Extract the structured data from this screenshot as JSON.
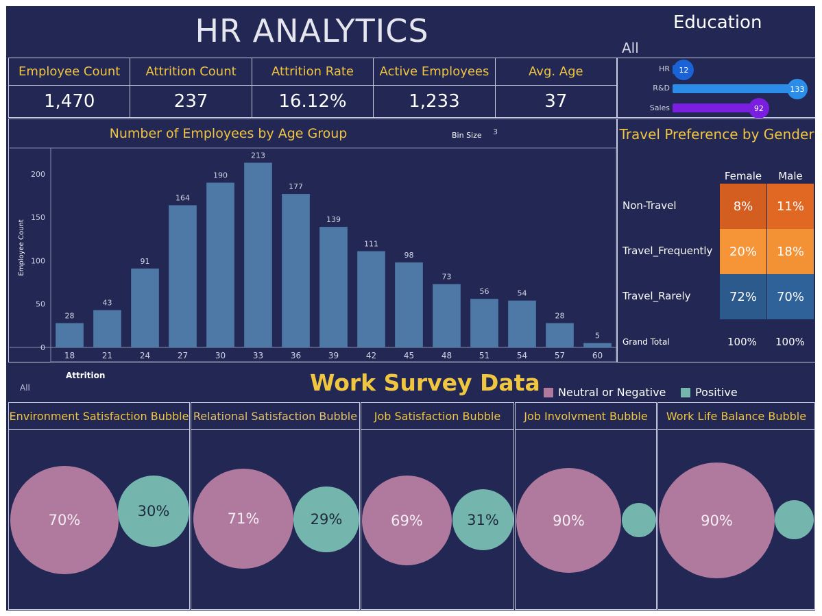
{
  "title": "HR ANALYTICS",
  "kpis": [
    {
      "label": "Employee Count",
      "value": "1,470"
    },
    {
      "label": "Attrition Count",
      "value": "237"
    },
    {
      "label": "Attrition Rate",
      "value": "16.12%"
    },
    {
      "label": "Active Employees",
      "value": "1,233"
    },
    {
      "label": "Avg. Age",
      "value": "37"
    }
  ],
  "education": {
    "title": "Education",
    "filter_value": "All",
    "rows": [
      {
        "label": "HR",
        "value": 12,
        "color": "#1a63d6"
      },
      {
        "label": "R&D",
        "value": 133,
        "color": "#2b8de8"
      },
      {
        "label": "Sales",
        "value": 92,
        "color": "#7a1fe0"
      }
    ]
  },
  "age_chart": {
    "title": "Number of Employees by Age Group",
    "bin_size_label": "Bin Size",
    "bin_size_value": "3"
  },
  "chart_data": [
    {
      "type": "bar",
      "title": "Number of Employees by Age Group",
      "xlabel": "",
      "ylabel": "Employee Count",
      "categories": [
        "18",
        "21",
        "24",
        "27",
        "30",
        "33",
        "36",
        "39",
        "42",
        "45",
        "48",
        "51",
        "54",
        "57",
        "60"
      ],
      "values": [
        28,
        43,
        91,
        164,
        190,
        213,
        177,
        139,
        111,
        98,
        73,
        56,
        54,
        28,
        5
      ],
      "yticks": [
        "0",
        "50",
        "100",
        "150",
        "200"
      ],
      "ylim": [
        0,
        230
      ],
      "grid": false,
      "bar_color": "#4e79a7"
    },
    {
      "type": "heatmap",
      "title": "Travel Preference by Gender",
      "columns": [
        "Female",
        "Male"
      ],
      "rows": [
        {
          "label": "Non-Travel",
          "values": [
            "8%",
            "11%"
          ],
          "colors": [
            "#d45d20",
            "#e16822"
          ]
        },
        {
          "label": "Travel_Frequently",
          "values": [
            "20%",
            "18%"
          ],
          "colors": [
            "#f59537",
            "#f39234"
          ]
        },
        {
          "label": "Travel_Rarely",
          "values": [
            "72%",
            "70%"
          ],
          "colors": [
            "#2c5a8c",
            "#30629a"
          ]
        }
      ],
      "grand_total_label": "Grand Total",
      "grand_total_values": [
        "100%",
        "100%"
      ]
    }
  ],
  "attrition_filter": {
    "label": "Attrition",
    "value": "All"
  },
  "survey": {
    "title": "Work Survey Data",
    "legend": [
      {
        "label": "Neutral or Negative",
        "color": "#b07a9f"
      },
      {
        "label": "Positive",
        "color": "#74b5ae"
      }
    ],
    "panels": [
      {
        "title": "Environment Satisfaction Bubble",
        "neg": "70%",
        "pos": "30%",
        "neg_value": 70,
        "pos_value": 30
      },
      {
        "title": "Relational Satisfaction Bubble",
        "neg": "71%",
        "pos": "29%",
        "neg_value": 71,
        "pos_value": 29
      },
      {
        "title": "Job Satisfaction Bubble",
        "neg": "69%",
        "pos": "31%",
        "neg_value": 69,
        "pos_value": 31
      },
      {
        "title": "Job Involvment Bubble",
        "neg": "90%",
        "pos": "",
        "neg_value": 90,
        "pos_value": 10
      },
      {
        "title": "Work Life Balance Bubble",
        "neg": "90%",
        "pos": "",
        "neg_value": 90,
        "pos_value": 10
      }
    ]
  }
}
